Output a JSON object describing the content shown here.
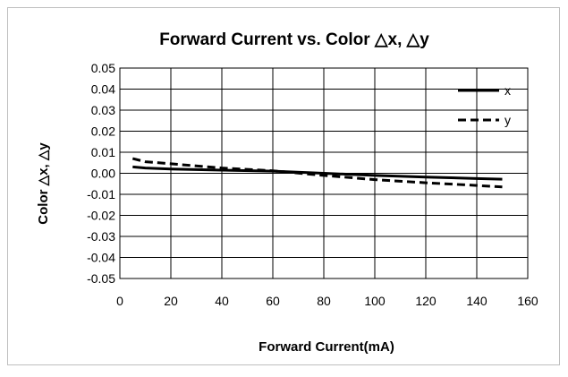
{
  "chart_data": {
    "type": "line",
    "title": "Forward Current vs.  Color △x, △y",
    "xlabel": "Forward Current(mA)",
    "ylabel": "Color △x, △y",
    "xlim": [
      0,
      160
    ],
    "ylim": [
      -0.05,
      0.05
    ],
    "x_ticks": [
      "0",
      "20",
      "40",
      "60",
      "80",
      "100",
      "120",
      "140",
      "160"
    ],
    "y_ticks": [
      "0.05",
      "0.04",
      "0.03",
      "0.02",
      "0.01",
      "0.00",
      "-0.01",
      "-0.02",
      "-0.03",
      "-0.04",
      "-0.05"
    ],
    "grid": {
      "horizontal": true,
      "vertical": true
    },
    "legend_position": "top-right",
    "series": [
      {
        "name": "x",
        "style": "solid",
        "x": [
          5,
          10,
          20,
          40,
          60,
          80,
          100,
          120,
          140,
          150
        ],
        "y": [
          0.003,
          0.0025,
          0.002,
          0.0015,
          0.001,
          0.0,
          -0.001,
          -0.0018,
          -0.0025,
          -0.0028
        ]
      },
      {
        "name": "y",
        "style": "dashed",
        "x": [
          5,
          10,
          20,
          40,
          60,
          80,
          100,
          120,
          140,
          150
        ],
        "y": [
          0.007,
          0.0055,
          0.0045,
          0.0025,
          0.0012,
          -0.001,
          -0.003,
          -0.0045,
          -0.0058,
          -0.0065
        ]
      }
    ]
  }
}
